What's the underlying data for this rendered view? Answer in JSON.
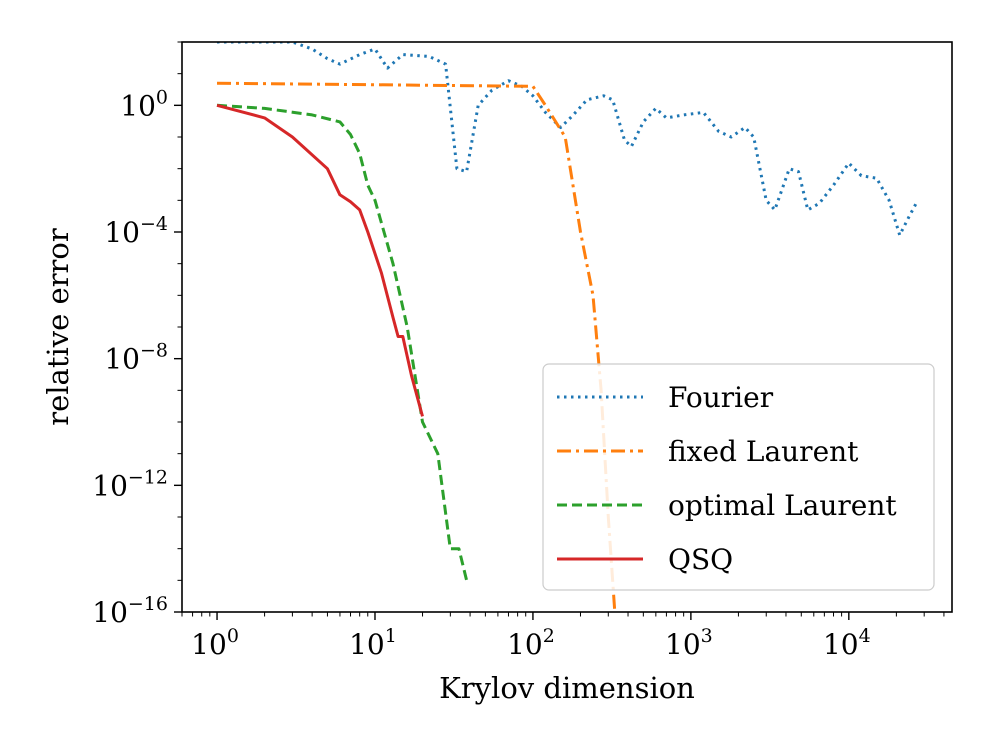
{
  "chart_data": {
    "type": "line",
    "title": "",
    "xlabel": "Krylov dimension",
    "ylabel": "relative error",
    "xscale": "log",
    "yscale": "log",
    "xlim": [
      0.6,
      45000
    ],
    "ylim": [
      1e-16,
      100
    ],
    "grid": false,
    "legend_position": "lower-right",
    "x_ticks": [
      {
        "value": 1,
        "base": "10",
        "exp": "0"
      },
      {
        "value": 10,
        "base": "10",
        "exp": "1"
      },
      {
        "value": 100,
        "base": "10",
        "exp": "2"
      },
      {
        "value": 1000,
        "base": "10",
        "exp": "3"
      },
      {
        "value": 10000,
        "base": "10",
        "exp": "4"
      }
    ],
    "y_ticks": [
      {
        "value": 1,
        "base": "10",
        "exp": "0"
      },
      {
        "value": 0.0001,
        "base": "10",
        "exp": "−4"
      },
      {
        "value": 1e-08,
        "base": "10",
        "exp": "−8"
      },
      {
        "value": 1e-12,
        "base": "10",
        "exp": "−12"
      },
      {
        "value": 1e-16,
        "base": "10",
        "exp": "−16"
      }
    ],
    "series": [
      {
        "name": "Fourier",
        "color": "#1f77b4",
        "style": "dotted",
        "points": [
          [
            1,
            100
          ],
          [
            3,
            100
          ],
          [
            4,
            60
          ],
          [
            5,
            30
          ],
          [
            6,
            20
          ],
          [
            8,
            40
          ],
          [
            10,
            60
          ],
          [
            12,
            15
          ],
          [
            15,
            40
          ],
          [
            22,
            35
          ],
          [
            28,
            20
          ],
          [
            33,
            0.01
          ],
          [
            38,
            0.008
          ],
          [
            45,
            1
          ],
          [
            55,
            3
          ],
          [
            70,
            6
          ],
          [
            85,
            4
          ],
          [
            100,
            2
          ],
          [
            120,
            0.6
          ],
          [
            150,
            0.2
          ],
          [
            180,
            0.5
          ],
          [
            220,
            1.5
          ],
          [
            280,
            2
          ],
          [
            320,
            1.5
          ],
          [
            380,
            0.08
          ],
          [
            420,
            0.05
          ],
          [
            500,
            0.3
          ],
          [
            600,
            0.8
          ],
          [
            700,
            0.4
          ],
          [
            900,
            0.5
          ],
          [
            1200,
            0.6
          ],
          [
            1500,
            0.15
          ],
          [
            1800,
            0.1
          ],
          [
            2200,
            0.2
          ],
          [
            2500,
            0.1
          ],
          [
            3000,
            0.001
          ],
          [
            3400,
            0.0005
          ],
          [
            4200,
            0.01
          ],
          [
            4800,
            0.008
          ],
          [
            5500,
            0.0005
          ],
          [
            6500,
            0.0008
          ],
          [
            8000,
            0.003
          ],
          [
            10000,
            0.015
          ],
          [
            12000,
            0.006
          ],
          [
            15000,
            0.005
          ],
          [
            18000,
            0.001
          ],
          [
            21000,
            8e-05
          ],
          [
            24000,
            0.0003
          ],
          [
            27000,
            0.0009
          ]
        ]
      },
      {
        "name": "fixed Laurent",
        "color": "#ff7f0e",
        "style": "dashdot",
        "points": [
          [
            1,
            5
          ],
          [
            100,
            4
          ],
          [
            120,
            1
          ],
          [
            160,
            0.1
          ],
          [
            200,
            0.0001
          ],
          [
            240,
            1e-06
          ],
          [
            270,
            1e-09
          ],
          [
            300,
            1e-13
          ],
          [
            330,
            1e-16
          ]
        ]
      },
      {
        "name": "optimal Laurent",
        "color": "#2ca02c",
        "style": "dashed",
        "points": [
          [
            1,
            1
          ],
          [
            2,
            0.8
          ],
          [
            4,
            0.5
          ],
          [
            6,
            0.3
          ],
          [
            7,
            0.12
          ],
          [
            8,
            0.03
          ],
          [
            9,
            0.003
          ],
          [
            10,
            0.001
          ],
          [
            13,
            1e-05
          ],
          [
            16,
            1e-07
          ],
          [
            20,
            1e-10
          ],
          [
            25,
            1e-11
          ],
          [
            30,
            1e-14
          ],
          [
            34,
            1e-14
          ],
          [
            38,
            1e-15
          ]
        ]
      },
      {
        "name": "QSQ",
        "color": "#d62728",
        "style": "solid",
        "points": [
          [
            1,
            1
          ],
          [
            2,
            0.4
          ],
          [
            3,
            0.1
          ],
          [
            5,
            0.01
          ],
          [
            6,
            0.0015
          ],
          [
            7,
            0.0009
          ],
          [
            8,
            0.0005
          ],
          [
            9,
            0.0001
          ],
          [
            11,
            5e-06
          ],
          [
            13,
            2e-07
          ],
          [
            14,
            5e-08
          ],
          [
            15,
            5e-08
          ],
          [
            17,
            3e-09
          ],
          [
            20,
            1.5e-10
          ]
        ]
      }
    ]
  }
}
